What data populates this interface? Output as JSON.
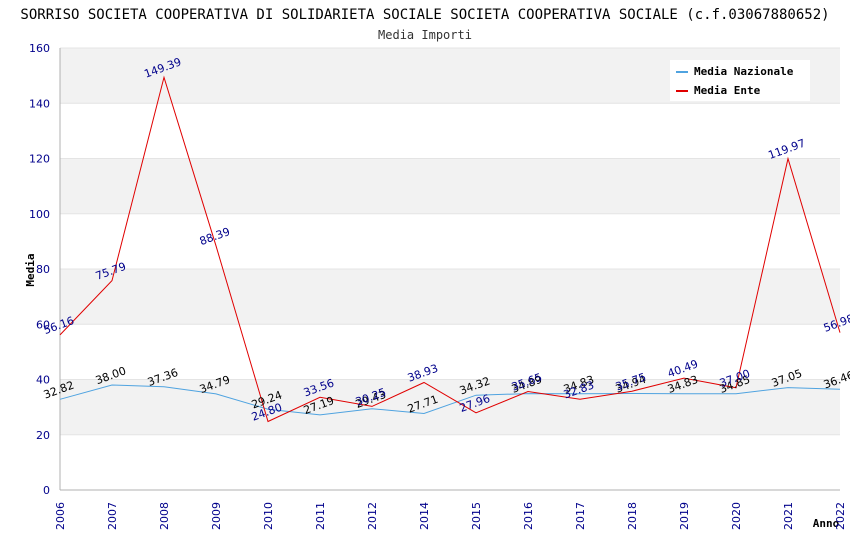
{
  "chart_data": {
    "type": "line",
    "title": "SORRISO SOCIETA COOPERATIVA DI SOLIDARIETA SOCIALE SOCIETA COOPERATIVA SOCIALE (c.f.03067880652)",
    "subtitle": "Media Importi",
    "xlabel": "Anno",
    "ylabel": "Media",
    "ylim": [
      0,
      160
    ],
    "yticks": [
      "0",
      "20",
      "40",
      "60",
      "80",
      "100",
      "120",
      "140",
      "160"
    ],
    "categories": [
      "2006",
      "2007",
      "2008",
      "2009",
      "2010",
      "2011",
      "2012",
      "2014",
      "2015",
      "2016",
      "2017",
      "2018",
      "2019",
      "2020",
      "2021",
      "2022"
    ],
    "series": [
      {
        "name": "Media Nazionale",
        "color": "#4fa3e0",
        "values": [
          32.82,
          38.0,
          37.36,
          34.79,
          29.24,
          27.19,
          29.43,
          27.71,
          34.32,
          34.89,
          34.83,
          34.94,
          34.83,
          34.85,
          37.05,
          36.46
        ],
        "labels": [
          "32.82",
          "38.00",
          "37.36",
          "34.79",
          "29.24",
          "27.19",
          "29.43",
          "27.71",
          "34.32",
          "34.89",
          "34.83",
          "34.94",
          "34.83",
          "34.85",
          "37.05",
          "36.46"
        ]
      },
      {
        "name": "Media Ente",
        "color": "#e00000",
        "values": [
          56.16,
          75.79,
          149.39,
          88.39,
          24.8,
          33.56,
          30.25,
          38.93,
          27.96,
          35.65,
          32.83,
          35.75,
          40.49,
          37.0,
          119.97,
          56.98
        ],
        "labels": [
          "56.16",
          "75.79",
          "149.39",
          "88.39",
          "24.80",
          "33.56",
          "30.25",
          "38.93",
          "27.96",
          "35.65",
          "32.83",
          "35.75",
          "40.49",
          "37.00",
          "119.97",
          "56.98"
        ]
      }
    ],
    "legend_position": "top-right"
  }
}
